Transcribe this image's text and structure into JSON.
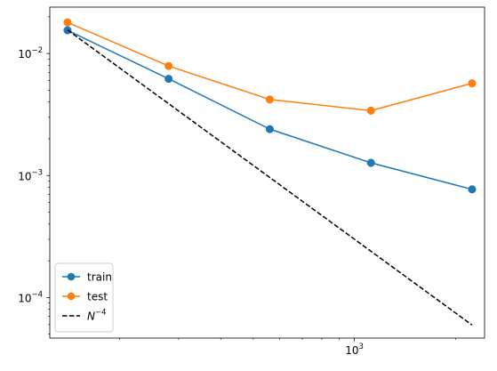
{
  "chart_data": {
    "type": "line",
    "title": "",
    "xlabel": "",
    "ylabel": "",
    "xscale": "log",
    "yscale": "log",
    "xlim": [
      124,
      2440
    ],
    "ylim": [
      4.65e-05,
      0.024
    ],
    "grid": false,
    "legend": {
      "position": "lower-left"
    },
    "x_major_ticks": [
      {
        "value": 1000,
        "base": "10",
        "exp": "3"
      }
    ],
    "x_minor_ticks": [
      200,
      300,
      400,
      500,
      600,
      700,
      800,
      900,
      2000
    ],
    "y_major_ticks": [
      {
        "value": 0.0001,
        "base": "10",
        "exp": "−4"
      },
      {
        "value": 0.001,
        "base": "10",
        "exp": "−3"
      },
      {
        "value": 0.01,
        "base": "10",
        "exp": "−2"
      }
    ],
    "y_minor_ticks": [
      5e-05,
      6e-05,
      7e-05,
      8e-05,
      9e-05,
      0.0002,
      0.0003,
      0.0004,
      0.0005,
      0.0006,
      0.0007,
      0.0008,
      0.0009,
      0.002,
      0.003,
      0.004,
      0.005,
      0.006,
      0.007,
      0.008,
      0.009,
      0.02
    ],
    "series": [
      {
        "name": "train",
        "color": "#1f77b4",
        "style": "solid",
        "marker": "circle",
        "x": [
          140,
          280,
          560,
          1120,
          2240
        ],
        "y": [
          0.0155,
          0.0062,
          0.0024,
          0.00127,
          0.00077
        ]
      },
      {
        "name": "test",
        "color": "#ff7f0e",
        "style": "solid",
        "marker": "circle",
        "x": [
          140,
          280,
          560,
          1120,
          2240
        ],
        "y": [
          0.018,
          0.0079,
          0.0042,
          0.0034,
          0.0057
        ]
      },
      {
        "name": "N",
        "name_sup": "−4",
        "color": "#000000",
        "style": "dashed",
        "marker": "none",
        "x": [
          140,
          2240
        ],
        "y": [
          0.0156,
          5.95e-05
        ]
      }
    ]
  }
}
